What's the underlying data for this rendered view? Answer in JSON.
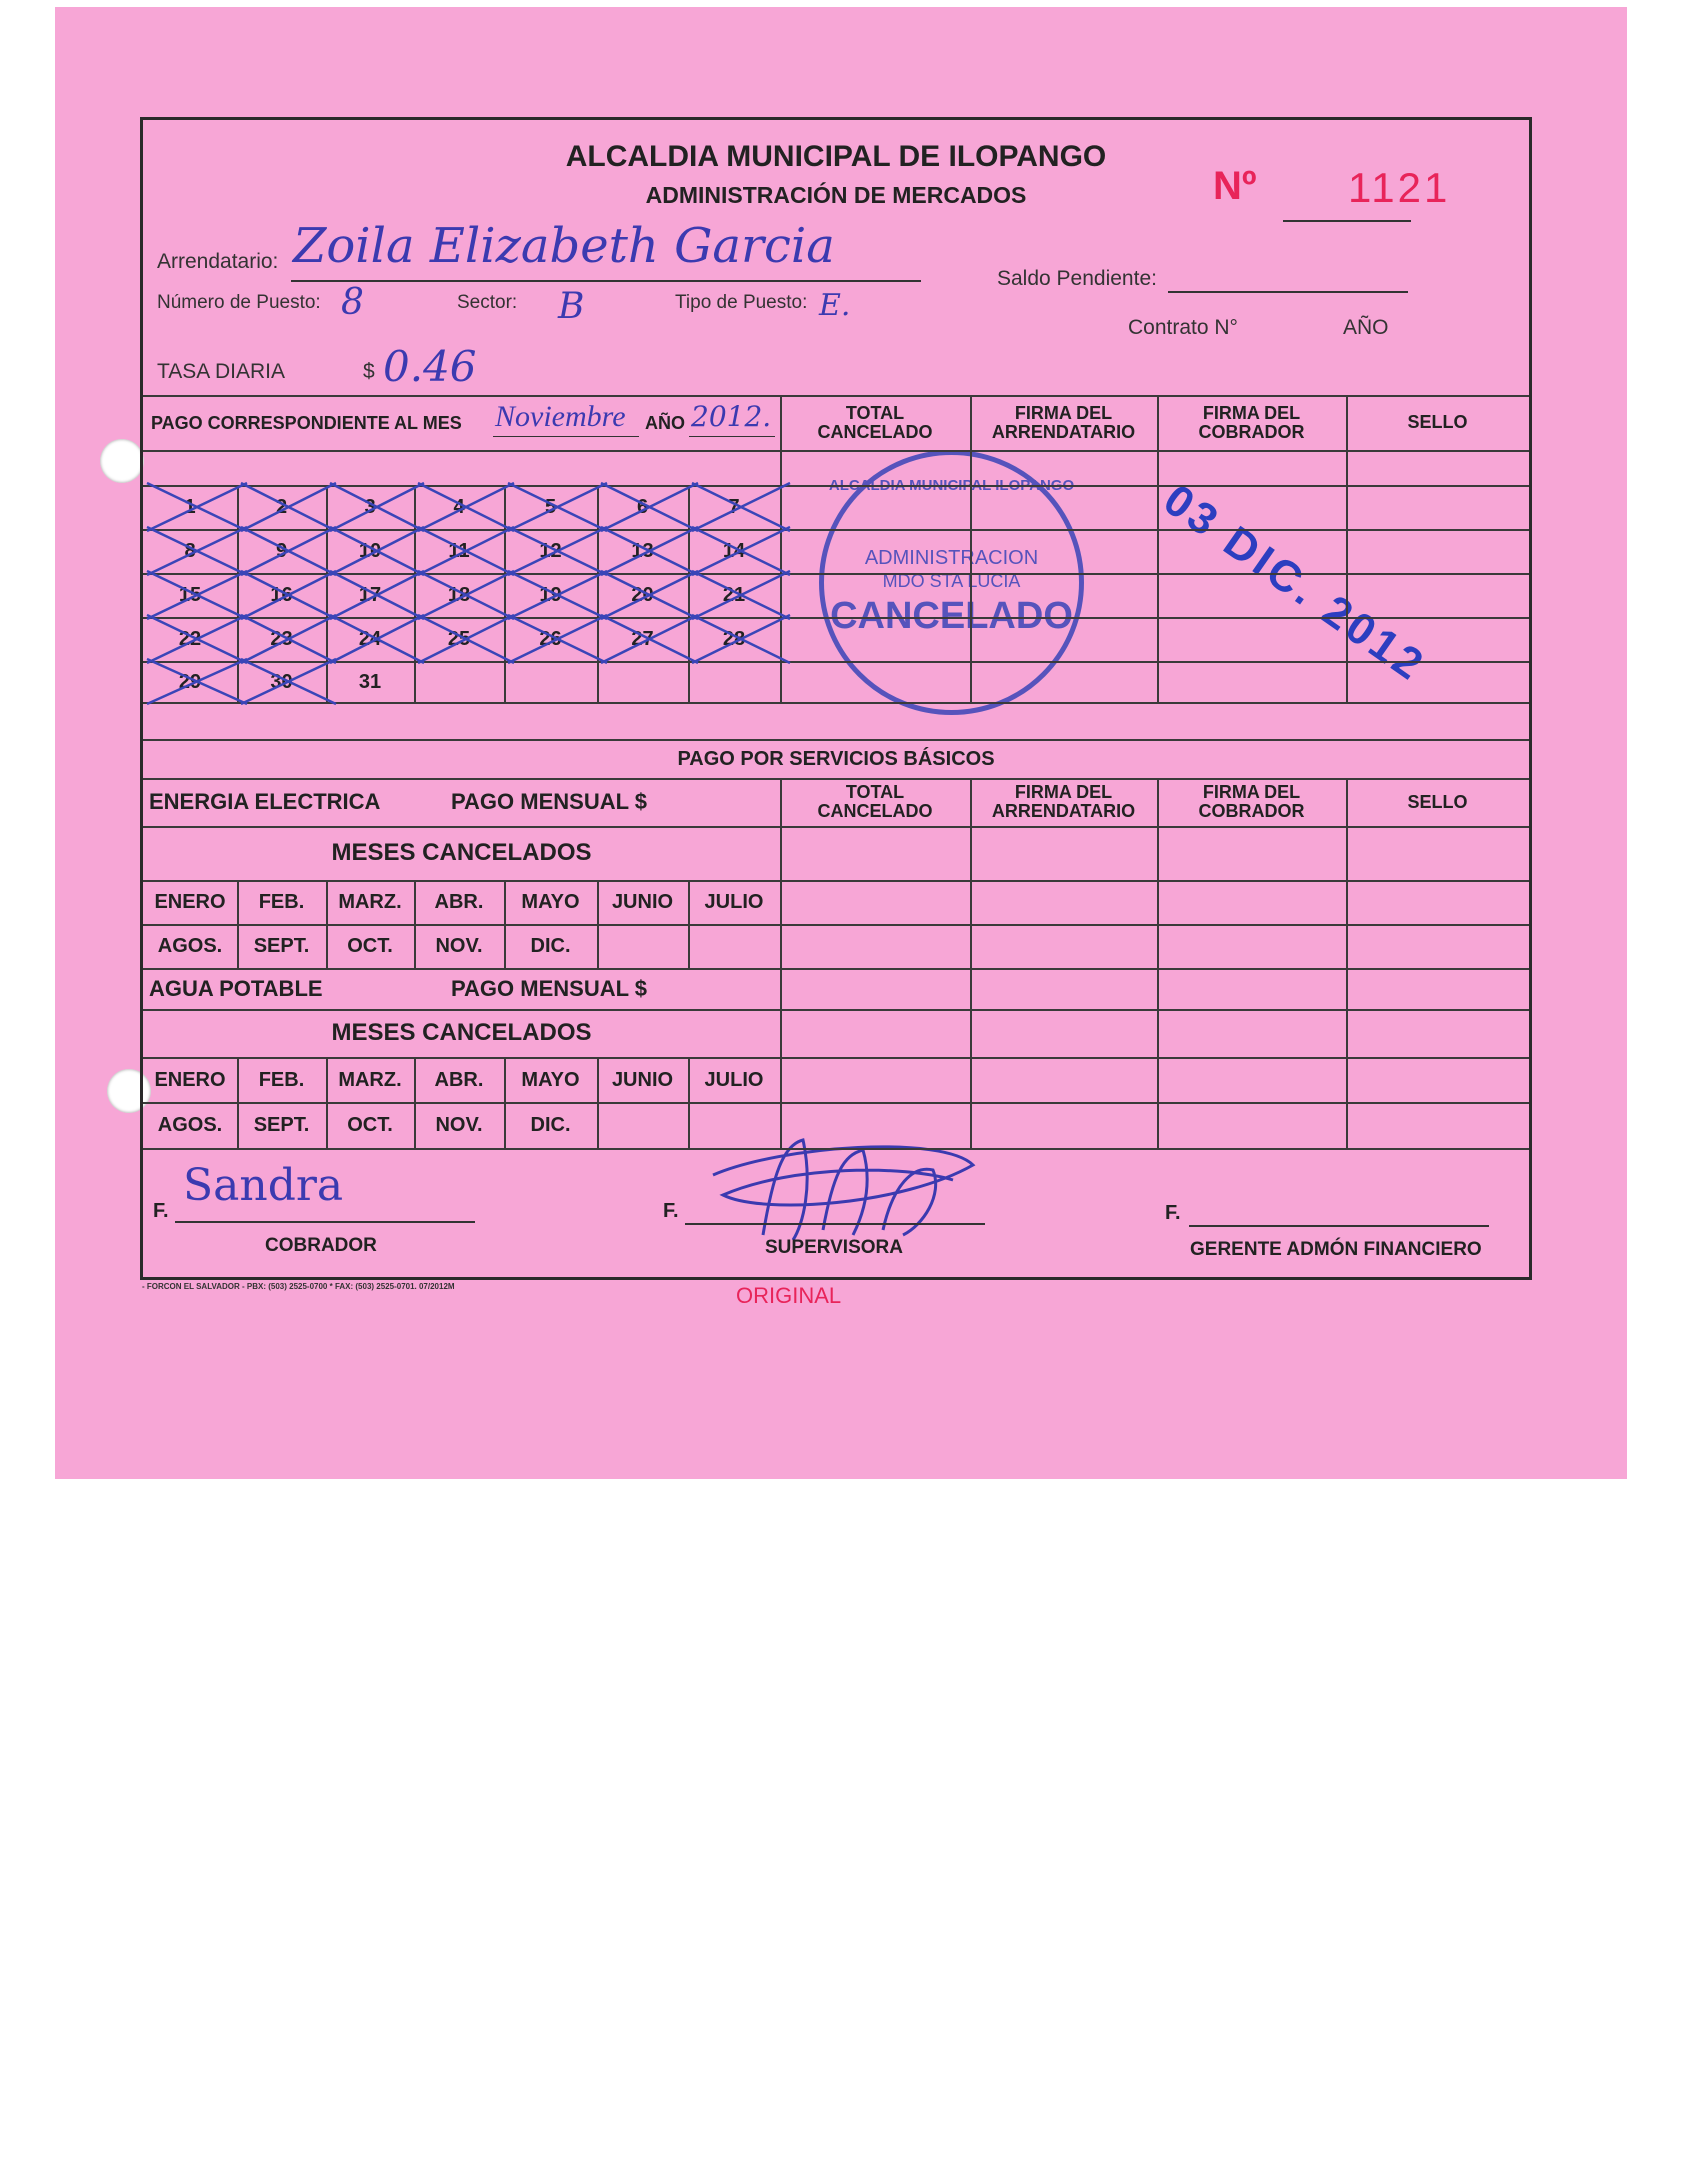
{
  "header": {
    "title": "ALCALDIA MUNICIPAL DE ILOPANGO",
    "subtitle": "ADMINISTRACIÓN DE MERCADOS",
    "number_label": "Nº",
    "number": "1121"
  },
  "fields": {
    "arrendatario_label": "Arrendatario:",
    "arrendatario_value": "Zoila Elizabeth Garcia",
    "numero_puesto_label": "Número de Puesto:",
    "numero_puesto_value": "8",
    "sector_label": "Sector:",
    "sector_value": "B",
    "tipo_puesto_label": "Tipo de Puesto:",
    "tipo_puesto_value": "E.",
    "saldo_label": "Saldo Pendiente:",
    "contrato_label": "Contrato N°",
    "contrato_ano_label": "AÑO",
    "tasa_label": "TASA DIARIA",
    "tasa_currency": "$",
    "tasa_value": "0.46"
  },
  "payment": {
    "mes_label": "PAGO CORRESPONDIENTE AL MES",
    "mes_value": "Noviembre",
    "ano_label": "AÑO",
    "ano_value": "2012."
  },
  "columns": [
    {
      "line1": "TOTAL",
      "line2": "CANCELADO"
    },
    {
      "line1": "FIRMA DEL",
      "line2": "ARRENDATARIO"
    },
    {
      "line1": "FIRMA DEL",
      "line2": "COBRADOR"
    },
    {
      "line1": "",
      "line2": "SELLO"
    }
  ],
  "days": [
    {
      "n": "1",
      "crossed": true
    },
    {
      "n": "2",
      "crossed": true
    },
    {
      "n": "3",
      "crossed": true
    },
    {
      "n": "4",
      "crossed": true
    },
    {
      "n": "5",
      "crossed": true
    },
    {
      "n": "6",
      "crossed": true
    },
    {
      "n": "7",
      "crossed": true
    },
    {
      "n": "8",
      "crossed": true
    },
    {
      "n": "9",
      "crossed": true
    },
    {
      "n": "10",
      "crossed": true
    },
    {
      "n": "11",
      "crossed": true
    },
    {
      "n": "12",
      "crossed": true
    },
    {
      "n": "13",
      "crossed": true
    },
    {
      "n": "14",
      "crossed": true
    },
    {
      "n": "15",
      "crossed": true
    },
    {
      "n": "16",
      "crossed": true
    },
    {
      "n": "17",
      "crossed": true
    },
    {
      "n": "18",
      "crossed": true
    },
    {
      "n": "19",
      "crossed": true
    },
    {
      "n": "20",
      "crossed": true
    },
    {
      "n": "21",
      "crossed": true
    },
    {
      "n": "22",
      "crossed": true
    },
    {
      "n": "23",
      "crossed": true
    },
    {
      "n": "24",
      "crossed": true
    },
    {
      "n": "25",
      "crossed": true
    },
    {
      "n": "26",
      "crossed": true
    },
    {
      "n": "27",
      "crossed": true
    },
    {
      "n": "28",
      "crossed": true
    },
    {
      "n": "29",
      "crossed": true
    },
    {
      "n": "30",
      "crossed": true
    },
    {
      "n": "31",
      "crossed": false
    }
  ],
  "stamps": {
    "circle_top": "ALCALDIA MUNICIPAL ILOPANGO",
    "circle_mid1": "ADMINISTRACION",
    "circle_mid2": "MDO STA LUCIA",
    "circle_main": "CANCELADO",
    "date": "03 DIC. 2012",
    "ink_color": "#3a45b8"
  },
  "services": {
    "title": "PAGO POR SERVICIOS BÁSICOS",
    "energia_label": "ENERGIA ELECTRICA",
    "agua_label": "AGUA POTABLE",
    "pago_mensual_label": "PAGO MENSUAL $",
    "meses_label": "MESES CANCELADOS",
    "months_row1": [
      "ENERO",
      "FEB.",
      "MARZ.",
      "ABR.",
      "MAYO",
      "JUNIO",
      "JULIO"
    ],
    "months_row2": [
      "AGOS.",
      "SEPT.",
      "OCT.",
      "NOV.",
      "DIC."
    ]
  },
  "signatures": [
    {
      "prefix": "F.",
      "value": "Sandra",
      "role": "COBRADOR"
    },
    {
      "prefix": "F.",
      "value": "",
      "role": "SUPERVISORA"
    },
    {
      "prefix": "F.",
      "value": "",
      "role": "GERENTE ADMÓN FINANCIERO"
    }
  ],
  "footer": {
    "printer": "- FORCON EL SALVADOR - PBX: (503) 2525-0700 * FAX: (503) 2525-0701. 07/2012M",
    "copy_label": "ORIGINAL"
  },
  "colors": {
    "paper": "#f7a6d6",
    "number_red": "#e8245a",
    "ink_blue": "#3b3ab0"
  }
}
